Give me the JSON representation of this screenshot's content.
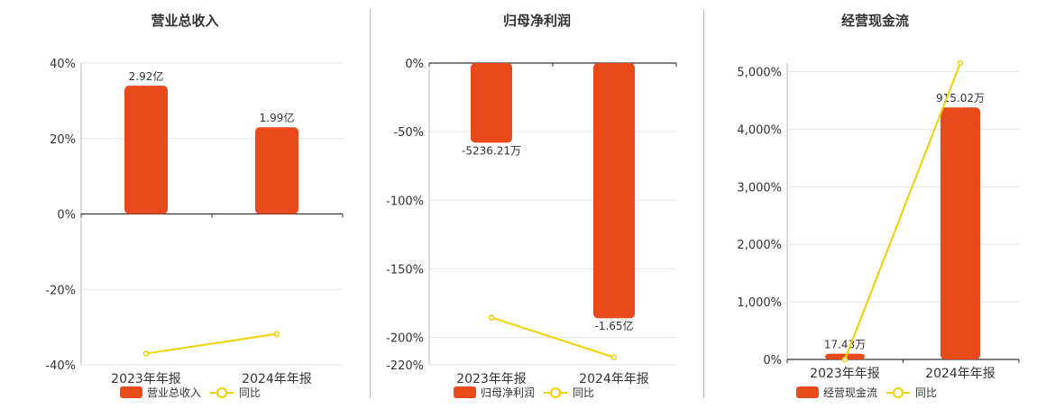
{
  "colors": {
    "bar": "#e84a1b",
    "line": "#f0d000",
    "axis": "#333333",
    "grid": "#e6e6e6",
    "text": "#333333"
  },
  "chart_data": [
    {
      "type": "bar",
      "title": "营业总收入",
      "categories": [
        "2023年年报",
        "2024年年报"
      ],
      "bar_series": {
        "name": "营业总收入",
        "values": [
          2.92,
          1.99
        ],
        "labels": [
          "2.92亿",
          "1.99亿"
        ]
      },
      "line_series": {
        "name": "同比",
        "values": [
          -37.0,
          -31.8
        ]
      },
      "ylim": [
        -40,
        40
      ],
      "yticks": [
        40,
        20,
        0,
        -20,
        -40
      ],
      "ytick_labels": [
        "40%",
        "20%",
        "0%",
        "-20%",
        "-40%"
      ],
      "bar_heights_pct": [
        34,
        23
      ],
      "legend": [
        "营业总收入",
        "同比"
      ]
    },
    {
      "type": "bar",
      "title": "归母净利润",
      "categories": [
        "2023年年报",
        "2024年年报"
      ],
      "bar_series": {
        "name": "归母净利润",
        "values": [
          -5236.21,
          -16500
        ],
        "labels": [
          "-5236.21万",
          "-1.65亿"
        ]
      },
      "line_series": {
        "name": "同比",
        "values": [
          -185.5,
          -214.5
        ]
      },
      "ylim": [
        -220,
        0
      ],
      "yticks": [
        0,
        -50,
        -100,
        -150,
        -200,
        -220
      ],
      "ytick_labels": [
        "0%",
        "-50%",
        "-100%",
        "-150%",
        "-200%",
        "-220%"
      ],
      "bar_heights_pct": [
        -58,
        -186
      ],
      "legend": [
        "归母净利润",
        "同比"
      ]
    },
    {
      "type": "bar",
      "title": "经营现金流",
      "categories": [
        "2023年年报",
        "2024年年报"
      ],
      "bar_series": {
        "name": "经营现金流",
        "values": [
          17.43,
          915.02
        ],
        "labels": [
          "17.43万",
          "915.02万"
        ]
      },
      "line_series": {
        "name": "同比",
        "values": [
          -80,
          5150
        ]
      },
      "ylim": [
        0,
        5150
      ],
      "yticks": [
        5000,
        4000,
        3000,
        2000,
        1000,
        0
      ],
      "ytick_labels": [
        "5,000%",
        "4,000%",
        "3,000%",
        "2,000%",
        "1,000%",
        "0%"
      ],
      "bar_heights_pct": [
        100,
        4380
      ],
      "legend": [
        "经营现金流",
        "同比"
      ]
    }
  ]
}
